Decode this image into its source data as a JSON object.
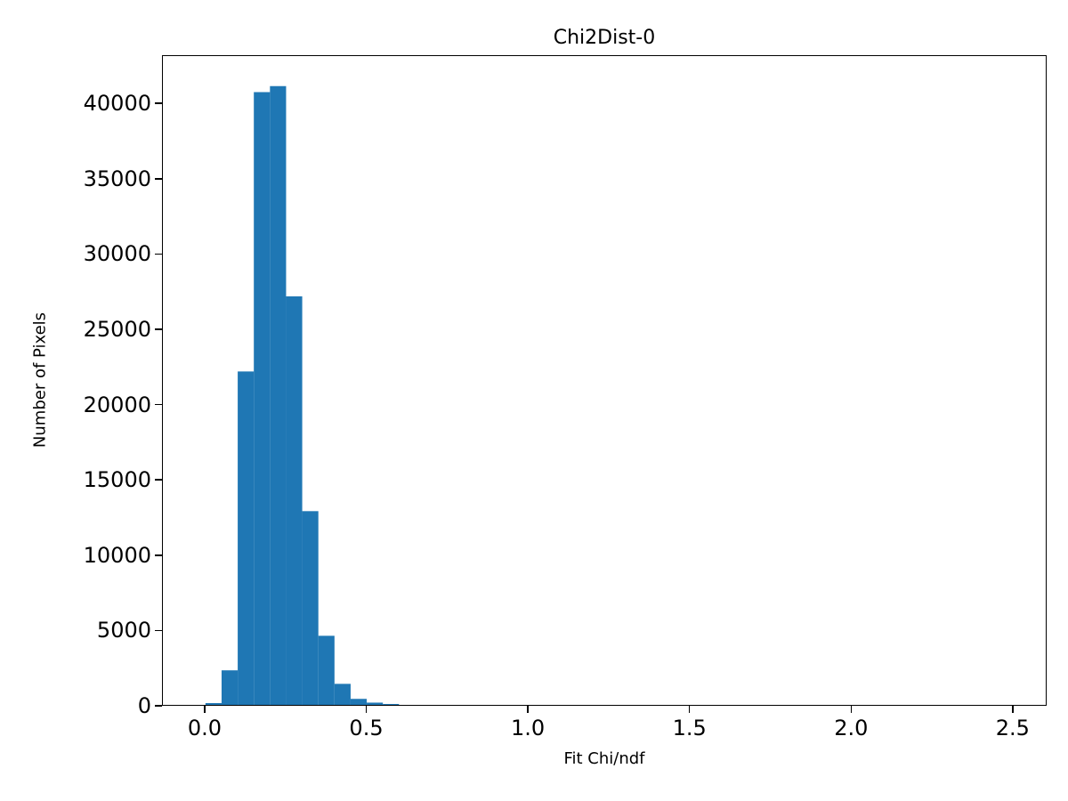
{
  "chart_data": {
    "type": "bar",
    "subtype": "histogram",
    "title": "Chi2Dist-0",
    "xlabel": "Fit Chi/ndf",
    "ylabel": "Number of Pixels",
    "bar_color": "#1f77b4",
    "grid": false,
    "legend": null,
    "bin_edges": [
      0.0,
      0.05,
      0.1,
      0.15,
      0.2,
      0.25,
      0.3,
      0.35,
      0.4,
      0.45,
      0.5,
      0.55,
      0.6
    ],
    "counts": [
      120,
      2300,
      22200,
      40800,
      41200,
      27200,
      12900,
      4600,
      1400,
      400,
      150,
      60
    ],
    "xlim": [
      -0.132,
      2.605
    ],
    "ylim": [
      0,
      43200
    ],
    "xticks": [
      {
        "value": 0.0,
        "label": "0.0"
      },
      {
        "value": 0.5,
        "label": "0.5"
      },
      {
        "value": 1.0,
        "label": "1.0"
      },
      {
        "value": 1.5,
        "label": "1.5"
      },
      {
        "value": 2.0,
        "label": "2.0"
      },
      {
        "value": 2.5,
        "label": "2.5"
      }
    ],
    "yticks": [
      {
        "value": 0,
        "label": "0"
      },
      {
        "value": 5000,
        "label": "5000"
      },
      {
        "value": 10000,
        "label": "10000"
      },
      {
        "value": 15000,
        "label": "15000"
      },
      {
        "value": 20000,
        "label": "20000"
      },
      {
        "value": 25000,
        "label": "25000"
      },
      {
        "value": 30000,
        "label": "30000"
      },
      {
        "value": 35000,
        "label": "35000"
      },
      {
        "value": 40000,
        "label": "40000"
      }
    ]
  }
}
